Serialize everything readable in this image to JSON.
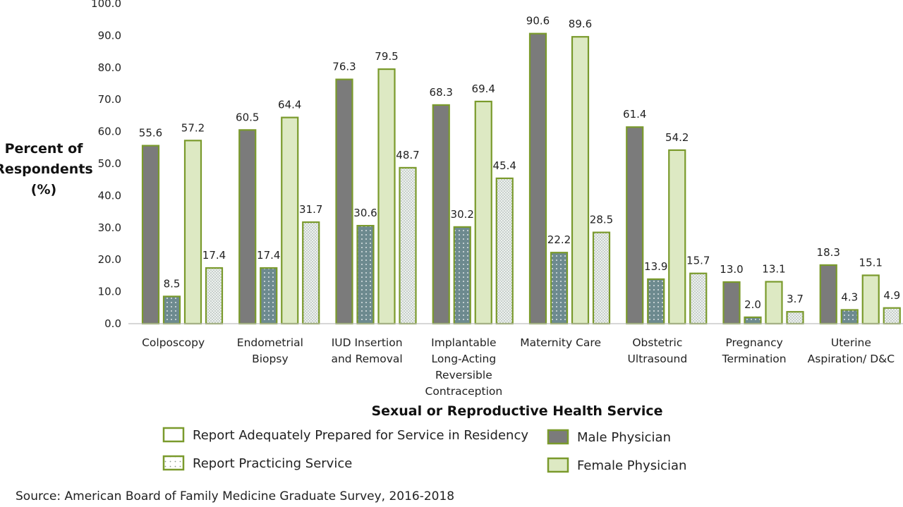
{
  "chart_data": {
    "type": "bar",
    "title": "",
    "xlabel": "Sexual or Reproductive Health Service",
    "ylabel": "Percent of Respondents (%)",
    "ylabel_lines": [
      "Percent of",
      "Respondents",
      "(%)"
    ],
    "ylim": [
      0,
      100
    ],
    "yticks": [
      "0.0",
      "10.0",
      "20.0",
      "30.0",
      "40.0",
      "50.0",
      "60.0",
      "70.0",
      "80.0",
      "90.0",
      "100.0"
    ],
    "grid": false,
    "categories": [
      [
        "Colposcopy"
      ],
      [
        "Endometrial",
        "Biopsy"
      ],
      [
        "IUD Insertion",
        "and Removal"
      ],
      [
        "Implantable",
        "Long-Acting",
        "Reversible",
        "Contraception"
      ],
      [
        "Maternity Care"
      ],
      [
        "Obstetric",
        "Ultrasound"
      ],
      [
        "Pregnancy",
        "Termination"
      ],
      [
        "Uterine",
        "Aspiration/ D&C"
      ]
    ],
    "series": [
      {
        "key": "male_prepared",
        "values": [
          55.6,
          60.5,
          76.3,
          68.3,
          90.6,
          61.4,
          13.0,
          18.3
        ]
      },
      {
        "key": "male_practicing",
        "values": [
          8.5,
          17.4,
          30.6,
          30.2,
          22.2,
          13.9,
          2.0,
          4.3
        ]
      },
      {
        "key": "female_prepared",
        "values": [
          57.2,
          64.4,
          79.5,
          69.4,
          89.6,
          54.2,
          13.1,
          15.1
        ]
      },
      {
        "key": "female_practicing",
        "values": [
          17.4,
          31.7,
          48.7,
          45.4,
          28.5,
          15.7,
          3.7,
          4.9
        ]
      }
    ],
    "value_labels": [
      [
        "55.6",
        "8.5",
        "57.2",
        "17.4"
      ],
      [
        "60.5",
        "17.4",
        "64.4",
        "31.7"
      ],
      [
        "76.3",
        "30.6",
        "79.5",
        "48.7"
      ],
      [
        "68.3",
        "30.2",
        "69.4",
        "45.4"
      ],
      [
        "90.6",
        "22.2",
        "89.6",
        "28.5"
      ],
      [
        "61.4",
        "13.9",
        "54.2",
        "15.7"
      ],
      [
        "13.0",
        "2.0",
        "13.1",
        "3.7"
      ],
      [
        "18.3",
        "4.3",
        "15.1",
        "4.9"
      ]
    ],
    "legend": {
      "placement": "bottom",
      "items": [
        {
          "label": "Report Adequately Prepared for Service in Residency",
          "swatch": "outline"
        },
        {
          "label": "Report Practicing Service",
          "swatch": "dotted"
        },
        {
          "label": "Male Physician",
          "swatch": "male"
        },
        {
          "label": "Female Physician",
          "swatch": "female"
        }
      ]
    },
    "colors": {
      "male": "#7b7b7b",
      "male_practicing": "#6d8a8f",
      "female": "#dde9c3",
      "female_practicing": "#e4ebe7",
      "outline": "#7a9a2c"
    }
  },
  "source": "Source: American Board of Family Medicine Graduate Survey, 2016-2018"
}
